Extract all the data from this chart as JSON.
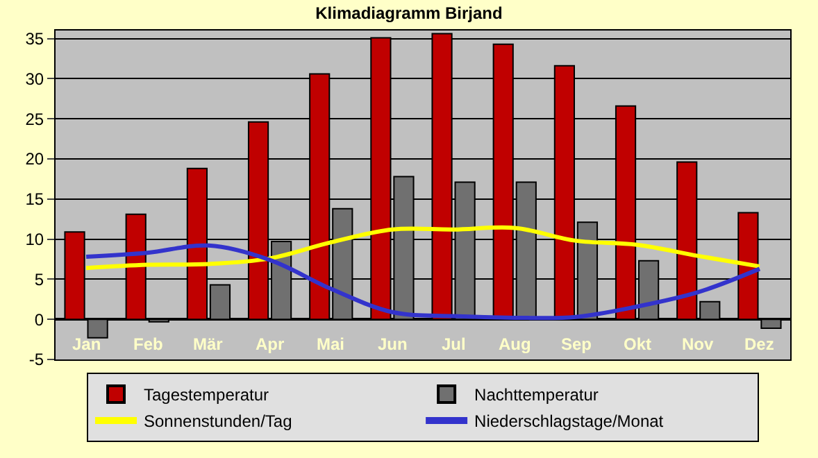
{
  "chart_data": {
    "type": "bar",
    "title": "Klimadiagramm Birjand",
    "categories": [
      "Jan",
      "Feb",
      "Mär",
      "Apr",
      "Mai",
      "Jun",
      "Jul",
      "Aug",
      "Sep",
      "Okt",
      "Nov",
      "Dez"
    ],
    "series": [
      {
        "name": "Tagestemperatur",
        "color": "#c00000",
        "values": [
          10.9,
          13.1,
          18.8,
          24.6,
          30.6,
          35.1,
          35.6,
          34.3,
          31.6,
          26.6,
          19.6,
          13.3
        ]
      },
      {
        "name": "Nachttemperatur",
        "color": "#707070",
        "values": [
          -2.3,
          -0.3,
          4.3,
          9.7,
          13.8,
          17.8,
          17.1,
          17.1,
          12.1,
          7.3,
          2.2,
          -1.1
        ]
      },
      {
        "name": "Sonnenstunden/Tag",
        "type": "line",
        "color": "#ffff00",
        "values": [
          6.4,
          6.8,
          6.9,
          7.6,
          9.6,
          11.2,
          11.2,
          11.4,
          9.8,
          9.3,
          7.9,
          6.6
        ]
      },
      {
        "name": "Niederschlagstage/Monat",
        "type": "line",
        "color": "#3333cc",
        "values": [
          7.8,
          8.3,
          9.2,
          7.4,
          3.8,
          0.9,
          0.4,
          0.2,
          0.3,
          1.6,
          3.4,
          6.3
        ]
      }
    ],
    "ylim": [
      -5,
      36
    ],
    "yticks": [
      -5,
      0,
      5,
      10,
      15,
      20,
      25,
      30,
      35
    ],
    "grid": "y",
    "legend": "bottom",
    "marker": "none"
  }
}
